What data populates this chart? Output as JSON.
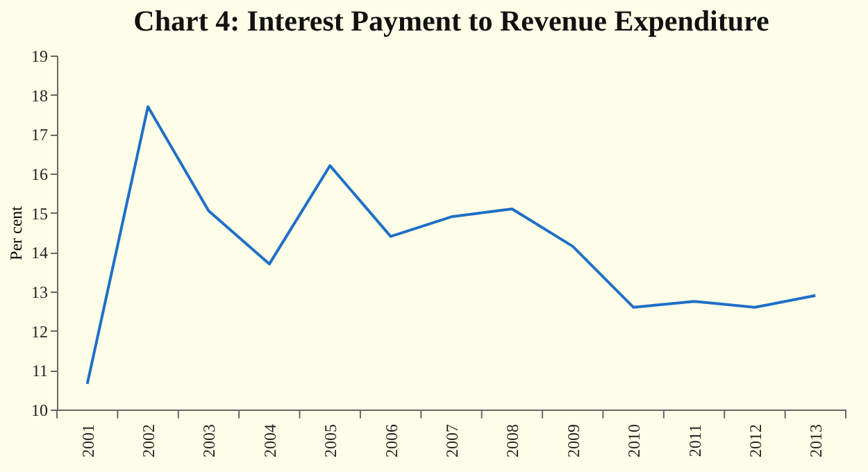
{
  "chart_data": {
    "type": "line",
    "title": "Chart 4: Interest Payment to Revenue Expenditure",
    "ylabel": "Per cent",
    "categories": [
      "2001",
      "2002",
      "2003",
      "2004",
      "2005",
      "2006",
      "2007",
      "2008",
      "2009",
      "2010",
      "2011",
      "2012",
      "2013"
    ],
    "series": [
      {
        "color": "#1f6fc8",
        "values": [
          10.65,
          17.7,
          15.05,
          13.7,
          16.2,
          14.4,
          14.9,
          15.1,
          14.15,
          12.6,
          12.75,
          12.6,
          12.9
        ]
      }
    ],
    "ylim": [
      10,
      19
    ],
    "yticks": [
      10,
      11,
      12,
      13,
      14,
      15,
      16,
      17,
      18,
      19
    ],
    "grid": false,
    "legend": false,
    "marker": "none",
    "line_style": "solid"
  }
}
